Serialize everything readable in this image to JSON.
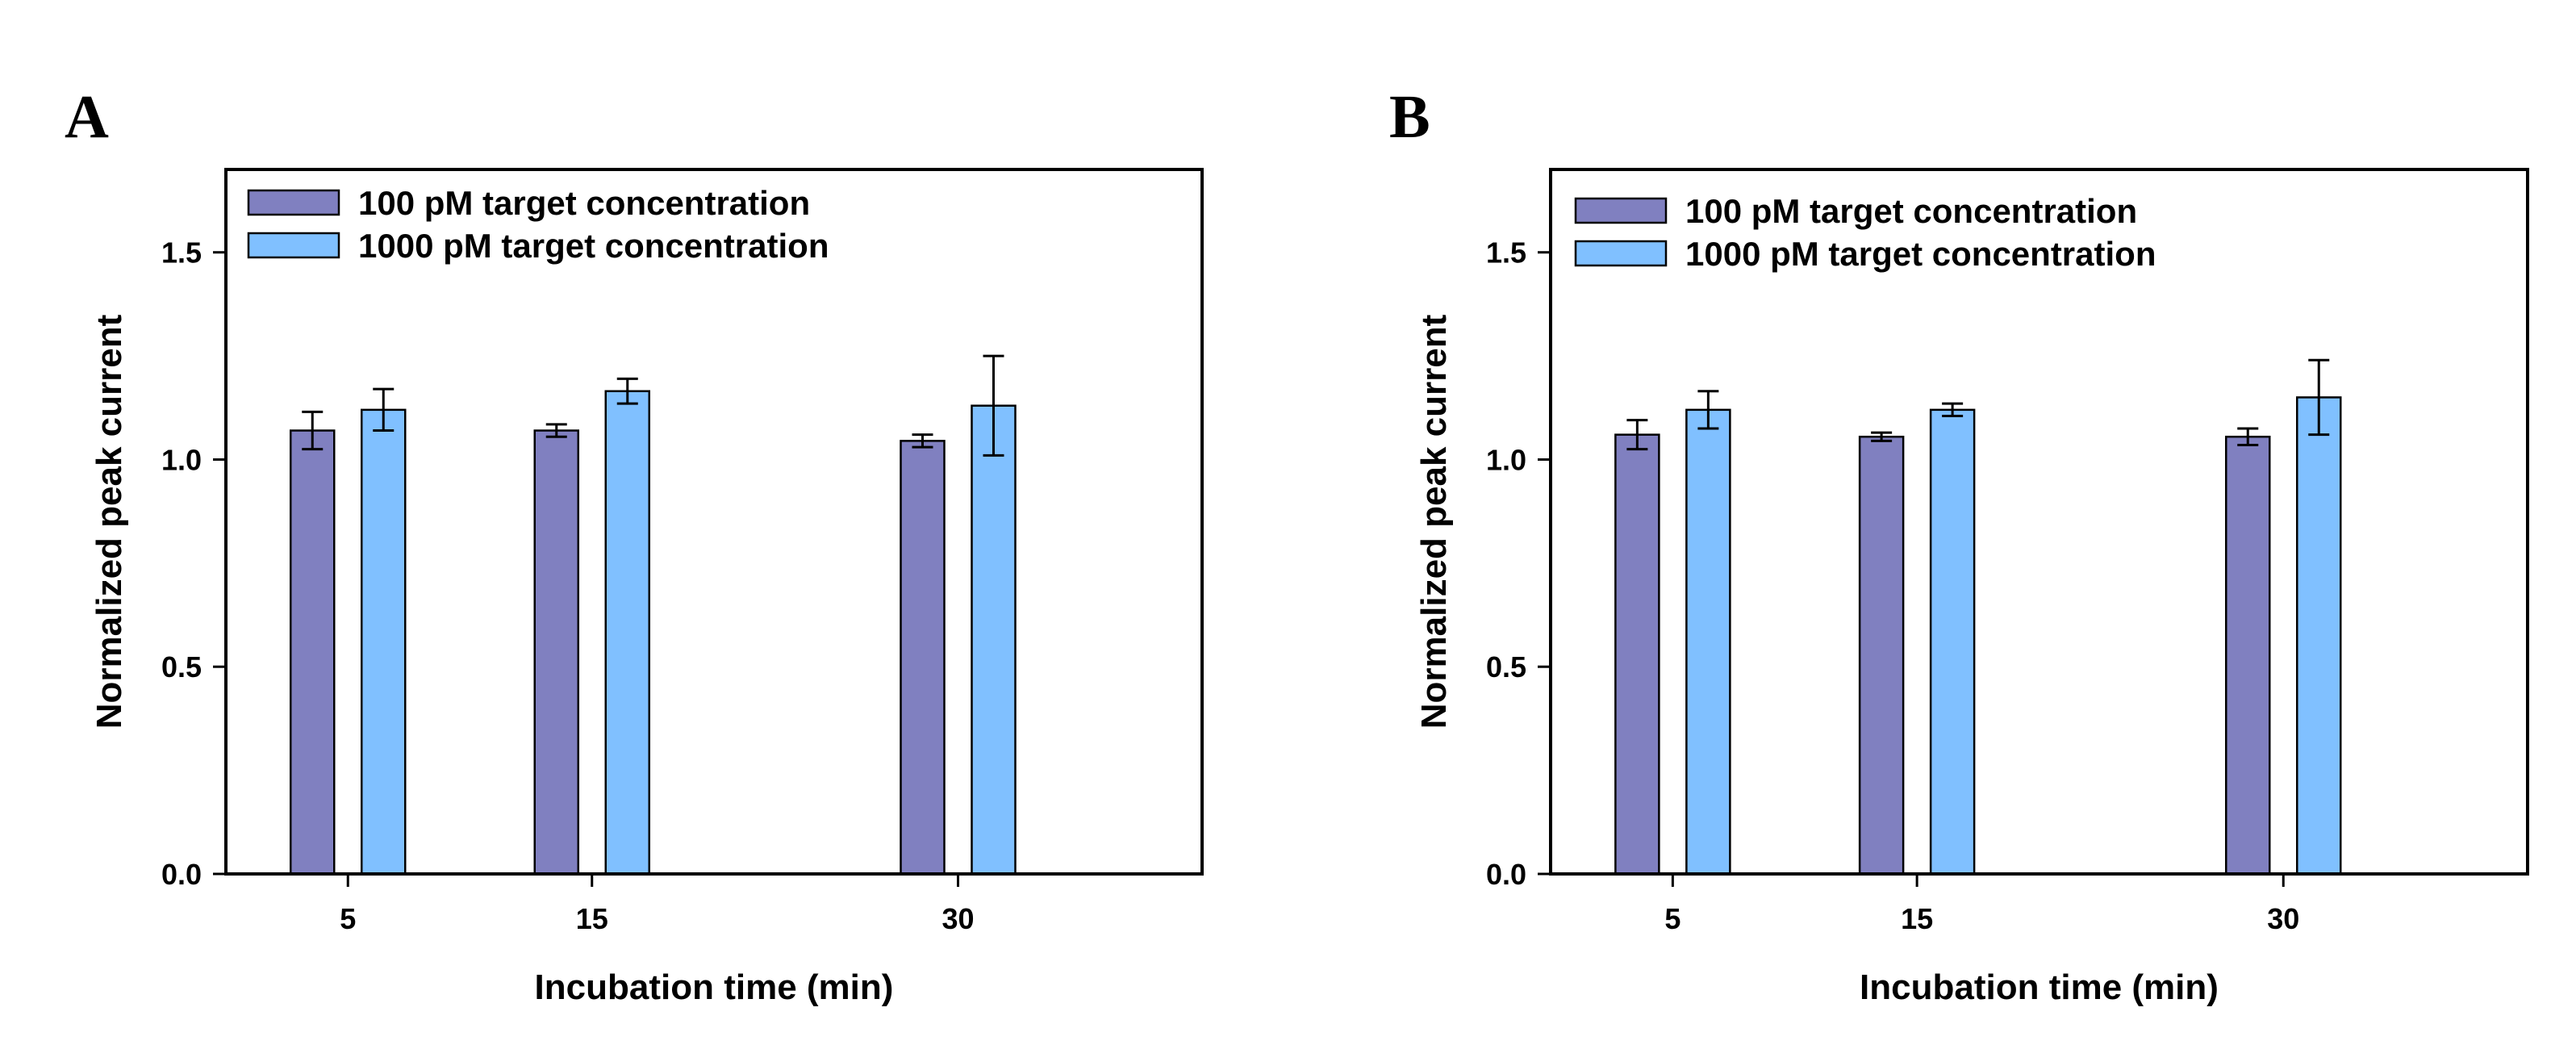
{
  "chart_data": [
    {
      "panel_label": "A",
      "type": "bar",
      "categories": [
        "5",
        "15",
        "30"
      ],
      "x": [
        5,
        15,
        30
      ],
      "xlabel": "Incubation time (min)",
      "ylabel": "Normalized peak current",
      "ylim": [
        0,
        1.7
      ],
      "xlim": [
        0,
        40
      ],
      "yticks": [
        "0.0",
        "0.5",
        "1.0",
        "1.5"
      ],
      "ytick_values": [
        0,
        0.5,
        1.0,
        1.5
      ],
      "legend_position": "top-left",
      "grid": false,
      "series": [
        {
          "name": "100 pM target concentration",
          "color": "#8080c0",
          "values": [
            1.07,
            1.07,
            1.045
          ],
          "errors": [
            0.045,
            0.015,
            0.015
          ]
        },
        {
          "name": "1000 pM target concentration",
          "color": "#80c0ff",
          "values": [
            1.12,
            1.165,
            1.13
          ],
          "errors": [
            0.05,
            0.03,
            0.12
          ]
        }
      ]
    },
    {
      "panel_label": "B",
      "type": "bar",
      "categories": [
        "5",
        "15",
        "30"
      ],
      "x": [
        5,
        15,
        30
      ],
      "xlabel": "Incubation time (min)",
      "ylabel": "Normalized peak current",
      "ylim": [
        0,
        1.7
      ],
      "xlim": [
        0,
        40
      ],
      "yticks": [
        "0.0",
        "0.5",
        "1.0",
        "1.5"
      ],
      "ytick_values": [
        0,
        0.5,
        1.0,
        1.5
      ],
      "legend_position": "top-left",
      "grid": false,
      "series": [
        {
          "name": "100 pM target concentration",
          "color": "#8080c0",
          "values": [
            1.06,
            1.055,
            1.055
          ],
          "errors": [
            0.035,
            0.01,
            0.02
          ]
        },
        {
          "name": "1000 pM target concentration",
          "color": "#80c0ff",
          "values": [
            1.12,
            1.12,
            1.15
          ],
          "errors": [
            0.045,
            0.015,
            0.09
          ]
        }
      ]
    }
  ]
}
